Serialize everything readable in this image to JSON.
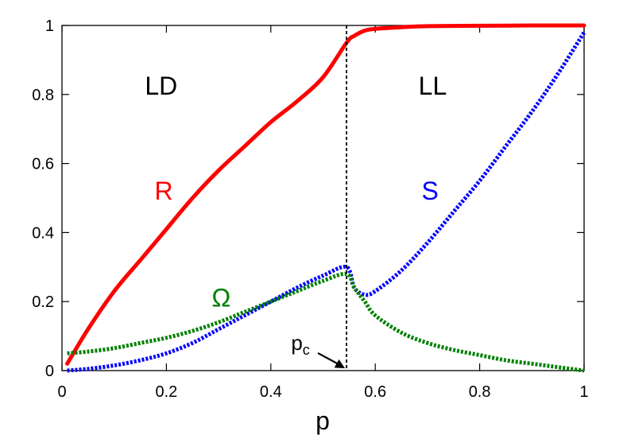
{
  "chart_data": {
    "type": "line",
    "title": "",
    "xlabel": "p",
    "ylabel": "",
    "xlim": [
      0,
      1
    ],
    "ylim": [
      0,
      1
    ],
    "x_ticks": [
      "0",
      "0.2",
      "0.4",
      "0.6",
      "0.8",
      "1"
    ],
    "y_ticks": [
      "0",
      "0.2",
      "0.4",
      "0.6",
      "0.8",
      "1"
    ],
    "grid": false,
    "legend": "none",
    "region_labels": [
      {
        "text": "LD",
        "x": 0.19,
        "y": 0.8
      },
      {
        "text": "LL",
        "x": 0.71,
        "y": 0.8
      }
    ],
    "critical_point": {
      "x": 0.545,
      "label": "p",
      "subscript": "c",
      "style": "dashed"
    },
    "series": [
      {
        "name": "R",
        "color": "#ff0000",
        "style": "solid",
        "label_pos": {
          "x": 0.195,
          "y": 0.495
        },
        "x": [
          0.01,
          0.05,
          0.1,
          0.15,
          0.2,
          0.25,
          0.3,
          0.35,
          0.4,
          0.45,
          0.5,
          0.545,
          0.56,
          0.58,
          0.6,
          0.65,
          0.7,
          0.8,
          0.9,
          1.0
        ],
        "values": [
          0.02,
          0.12,
          0.23,
          0.32,
          0.41,
          0.5,
          0.58,
          0.65,
          0.72,
          0.78,
          0.85,
          0.95,
          0.97,
          0.985,
          0.99,
          0.995,
          0.998,
          0.999,
          1.0,
          1.0
        ]
      },
      {
        "name": "S",
        "color": "#0000ff",
        "style": "dotted",
        "label_pos": {
          "x": 0.705,
          "y": 0.495
        },
        "x": [
          0.01,
          0.05,
          0.1,
          0.15,
          0.2,
          0.25,
          0.3,
          0.35,
          0.4,
          0.45,
          0.5,
          0.545,
          0.56,
          0.58,
          0.6,
          0.65,
          0.7,
          0.75,
          0.8,
          0.85,
          0.9,
          0.95,
          1.0
        ],
        "values": [
          0.0,
          0.005,
          0.015,
          0.03,
          0.05,
          0.08,
          0.12,
          0.16,
          0.2,
          0.24,
          0.275,
          0.3,
          0.24,
          0.22,
          0.23,
          0.29,
          0.37,
          0.46,
          0.55,
          0.65,
          0.75,
          0.86,
          0.98
        ]
      },
      {
        "name": "Ω",
        "color": "#008000",
        "style": "dotted",
        "label_pos": {
          "x": 0.305,
          "y": 0.185
        },
        "x": [
          0.01,
          0.05,
          0.1,
          0.15,
          0.2,
          0.25,
          0.3,
          0.35,
          0.4,
          0.45,
          0.5,
          0.545,
          0.56,
          0.58,
          0.6,
          0.65,
          0.7,
          0.75,
          0.8,
          0.85,
          0.9,
          0.95,
          1.0
        ],
        "values": [
          0.05,
          0.055,
          0.065,
          0.08,
          0.095,
          0.115,
          0.14,
          0.17,
          0.2,
          0.23,
          0.26,
          0.28,
          0.24,
          0.2,
          0.16,
          0.11,
          0.08,
          0.06,
          0.045,
          0.03,
          0.02,
          0.01,
          0.0
        ]
      }
    ]
  }
}
